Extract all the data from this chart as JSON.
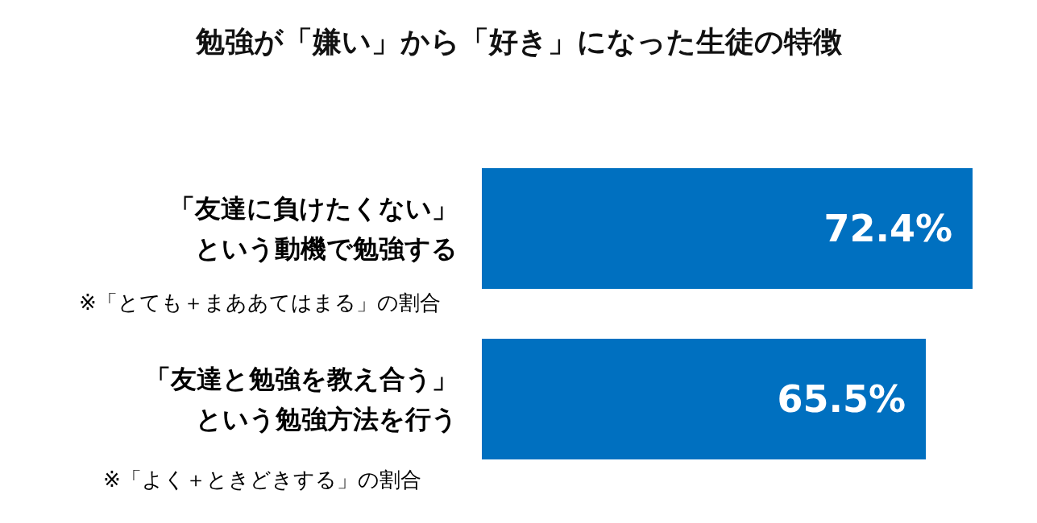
{
  "chart_data": {
    "type": "bar",
    "orientation": "horizontal",
    "title": "勉強が「嫌い」から「好き」になった生徒の特徴",
    "categories": [
      "「友達に負けたくない」という動機で勉強する",
      "「友達と勉強を教え合う」という勉強方法を行う"
    ],
    "values": [
      72.4,
      65.5
    ],
    "value_labels": [
      "72.4%",
      "65.5%"
    ],
    "color": "#0070c0",
    "annotations": [
      "※「とても＋まああてはまる」の割合",
      "※「よく＋ときどきする」の割合"
    ]
  }
}
